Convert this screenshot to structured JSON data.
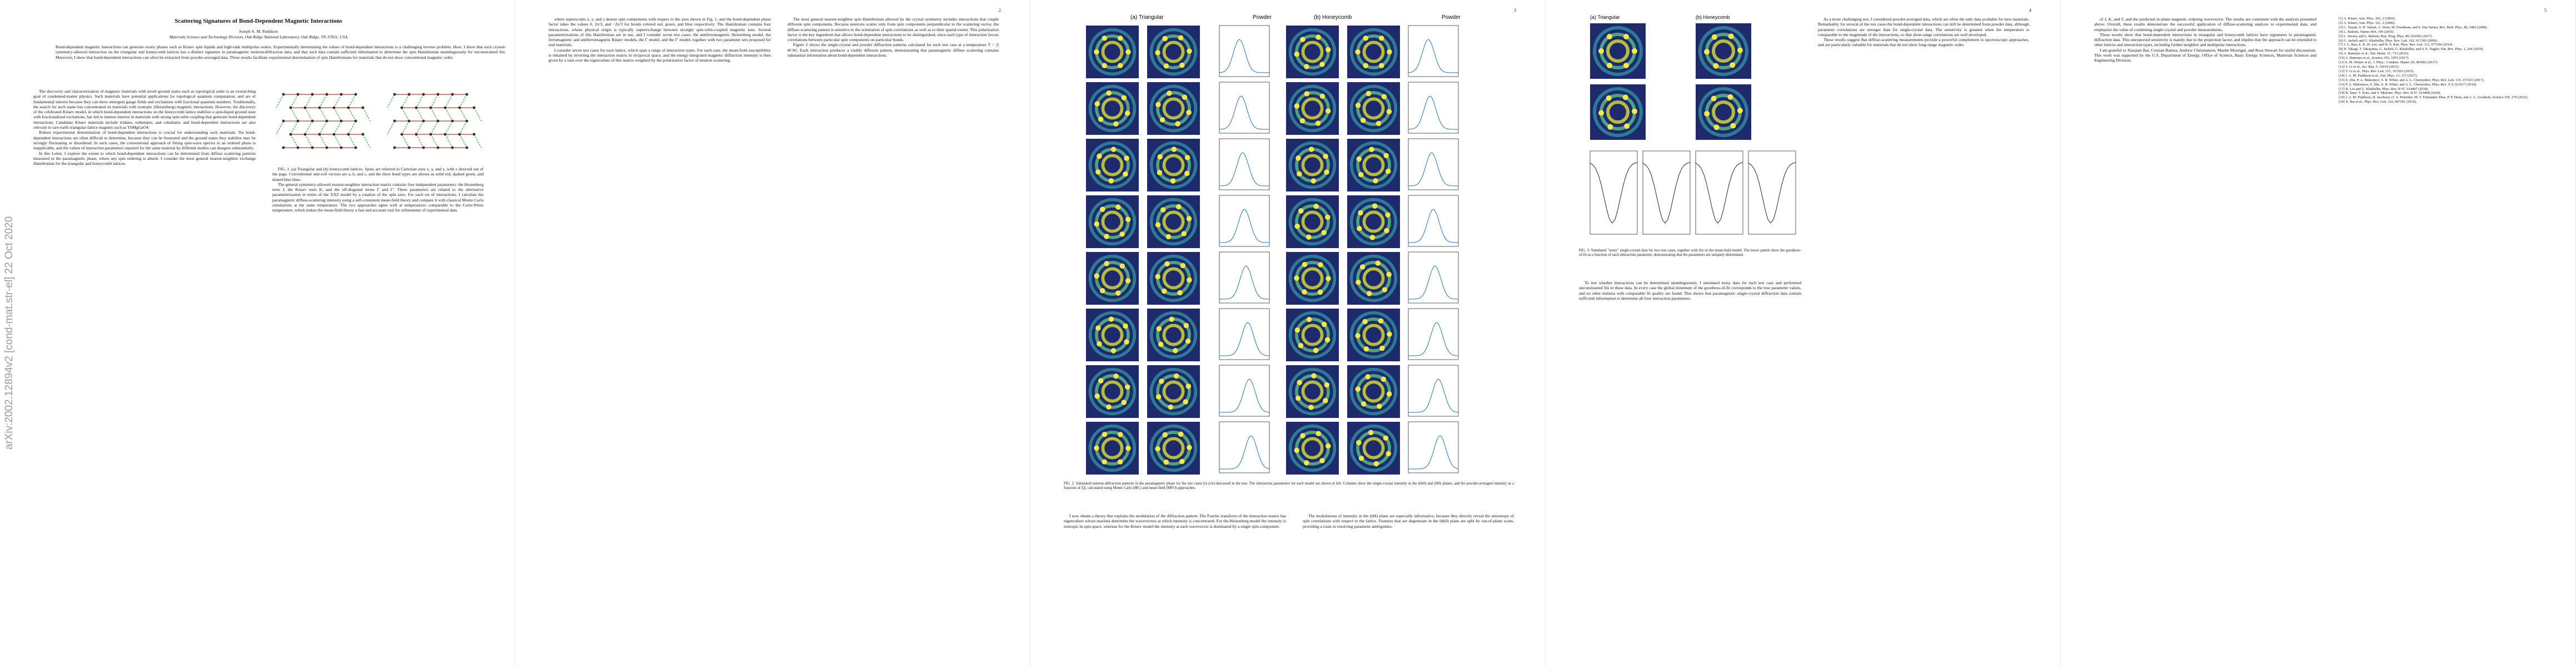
{
  "arxiv_stamp": "arXiv:2002.12894v2  [cond-mat.str-el]  22 Oct 2020",
  "pages": [
    {
      "title": "Scattering Signatures of Bond-Dependent Magnetic Interactions",
      "author": "Joseph A. M. Paddison",
      "affiliation": "Materials Science and Technology Division, Oak Ridge National Laboratory, Oak Ridge, TN 37831, USA",
      "abstract": "Bond-dependent magnetic interactions can generate exotic phases such as Kitaev spin liquids and high-rank multipolar orders. Experimentally determining the values of bond-dependent interactions is a challenging inverse problem. Here, I show that each crystal-symmetry-allowed interaction on the triangular and honeycomb lattices has a distinct signature in paramagnetic neutron-diffraction data, and that such data contain sufficient information to determine the spin Hamiltonian unambiguously for unconstrained fits. Moreover, I show that bond-dependent interactions can often be extracted from powder-averaged data. These results facilitate experimental determination of spin Hamiltonians for materials that do not show conventional magnetic order.",
      "columns": [
        [
          "The discovery and characterization of magnetic materials with novel ground states such as topological order is an overarching goal of condensed-matter physics. Such materials have potential applications for topological quantum computation, and are of fundamental interest because they can show emergent gauge fields and excitations with fractional quantum numbers. Traditionally, the search for such states has concentrated on materials with isotropic (Heisenberg) magnetic interactions. However, the discovery of the celebrated Kitaev model, in which bond-dependent interactions on the honeycomb lattice stabilize a spin-liquid ground state with fractionalized excitations, has led to intense interest in materials with strong spin-orbit coupling that generate bond-dependent interactions. Candidate Kitaev materials include iridates, ruthenates, and cobaltates, and bond-dependent interactions are also relevant to rare-earth triangular-lattice magnets such as YbMgGaO4.",
          "Robust experimental determination of bond-dependent interactions is crucial for understanding such materials. Yet bond-dependent interactions are often difficult to determine, because they can be frustrated and the ground states they stabilize may be strongly fluctuating or disordered. In such cases, the conventional approach of fitting spin-wave spectra in an ordered phase is inapplicable, and the values of interaction parameters reported for the same material by different studies can disagree substantially.",
          "In this Letter, I explore the extent to which bond-dependent interactions can be determined from diffuse scattering patterns measured in the paramagnetic phase, where any spin ordering is absent. I consider the most general nearest-neighbor exchange Hamiltonian for the triangular and honeycomb lattices."
        ],
        [
          "FIG. 1. (a) Triangular and (b) honeycomb lattices. Spins are referred to Cartesian axes x, y, and z, with z directed out of the page. Conventional unit-cell vectors are a, b, and c, and the three bond types are shown as solid red, dashed green, and dotted blue lines.",
          "The general symmetry-allowed nearest-neighbor interaction matrix contains four independent parameters: the Heisenberg term J, the Kitaev term K, and the off-diagonal terms Γ and Γ'. These parameters are related to the alternative parameterization in terms of the XXZ model by a rotation of the spin axes. For each set of interactions, I calculate the paramagnetic diffuse-scattering intensity using a self-consistent mean-field theory and compare it with classical Monte Carlo simulations at the same temperature. The two approaches agree well at temperatures comparable to the Curie-Weiss temperature, which makes the mean-field theory a fast and accurate tool for refinements of experimental data."
        ]
      ]
    },
    {
      "number": "2",
      "columns": [
        [
          "where superscripts x, y, and z denote spin components with respect to the axes shown in Fig. 1, and the bond-dependent phase factor takes the values 0, 2π/3, and −2π/3 for bonds colored red, green, and blue respectively. The Hamiltonian contains four interactions, whose physical origin is typically superexchange between strongly spin-orbit-coupled magnetic ions. Several parameterizations of this Hamiltonian are in use, and I consider seven test cases: the antiferromagnetic Heisenberg model, the ferromagnetic and antiferromagnetic Kitaev models, the Γ model, and the Γ' model, together with two parameter sets proposed for real materials.",
          "I consider seven test cases for each lattice, which span a range of interaction types. For each case, the mean-field susceptibility is obtained by inverting the interaction matrix in reciprocal space, and the energy-integrated magnetic diffraction intensity is then given by a sum over the eigenvalues of this matrix weighted by the polarization factor of neutron scattering."
        ],
        [
          "The most general nearest-neighbor spin Hamiltonian allowed by the crystal symmetry includes interactions that couple different spin components. Because neutrons scatter only from spin components perpendicular to the scattering vector, the diffuse-scattering pattern is sensitive to the orientation of spin correlations as well as to their spatial extent. This polarization factor is the key ingredient that allows bond-dependent interactions to be distinguished, since each type of interaction favors correlations between particular spin components on particular bonds.",
          "Figure 2 shows the single-crystal and powder diffraction patterns calculated for each test case at a temperature T = 2|θCW|. Each interaction produces a visibly different pattern, demonstrating that paramagnetic diffuse scattering contains substantial information about bond-dependent interactions."
        ]
      ]
    },
    {
      "number": "3",
      "figure_labels": [
        "(a) Triangular",
        "(b) Honeycomb",
        "Powder",
        "Powder"
      ],
      "caption": "FIG. 2. Simulated neutron-diffraction patterns in the paramagnetic phase for the test cases (i)–(vii) discussed in the text. The interaction parameters for each model are shown at left. Columns show the single-crystal intensity in the (hk0) and (h0l) planes, and the powder-averaged intensity as a function of |Q|, calculated using Monte Carlo (MC) and mean-field (MFO) approaches.",
      "columns": [
        [
          "I now obtain a theory that explains the modulation of the diffraction pattern. The Fourier transform of the interaction matrix has eigenvalues whose maxima determine the wavevectors at which intensity is concentrated. For the Heisenberg model the intensity is isotropic in spin space, whereas for the Kitaev model the intensity at each wavevector is dominated by a single spin component."
        ],
        [
          "The modulations of intensity in the (h0l) plane are especially informative, because they directly reveal the anisotropy of spin correlations with respect to the lattice. Features that are degenerate in the (hk0) plane are split by out-of-plane scans, providing a route to resolving parameter ambiguities."
        ]
      ]
    },
    {
      "number": "4",
      "figure_labels": [
        "(a) Triangular",
        "(b) Honeycomb"
      ],
      "caption": "FIG. 3. Simulated \"noisy\" single-crystal data for two test cases, together with fits of the mean-field model. The lower panels show the goodness-of-fit as a function of each interaction parameter, demonstrating that the parameters are uniquely determined.",
      "columns": [
        [
          "To test whether interactions can be determined unambiguously, I simulated noisy data for each test case and performed unconstrained fits to these data. In every case the global minimum of the goodness-of-fit corresponds to the true parameter values, and no other minima with comparable fit quality are found. This shows that paramagnetic single-crystal diffraction data contain sufficient information to determine all four interaction parameters."
        ],
        [
          "As a more challenging test, I considered powder-averaged data, which are often the only data available for new materials. Remarkably, for several of the test cases the bond-dependent interactions can still be determined from powder data, although parameter correlations are stronger than for single-crystal data. The sensitivity is greatest when the temperature is comparable to the magnitude of the interactions, so that short-range correlations are well developed.",
          "These results suggest that diffuse-scattering measurements provide a powerful complement to spectroscopic approaches, and are particularly valuable for materials that do not show long-range magnetic order."
        ]
      ]
    },
    {
      "number": "5",
      "columns": [
        [
          "of J, K, and Γ, and the predicted in-plane magnetic ordering wavevector. The results are consistent with the analysis presented above. Overall, these results demonstrate the successful application of diffuse-scattering analysis to experimental data, and emphasize the value of combining single-crystal and powder measurements.",
          "These results show that bond-dependent interactions in triangular and honeycomb lattices have signatures in paramagnetic diffraction data. This unexpected sensitivity is mainly due to the projection factor, and implies that the approach can be extended to other lattices and interaction types, including further-neighbor and multipolar interactions.",
          "I am grateful to Xiaojian Bai, Cristian Batista, Andrew Christianson, Martin Mourigal, and Ross Stewart for useful discussions. This work was supported by the U.S. Department of Energy, Office of Science, Basic Energy Sciences, Materials Sciences and Engineering Division."
        ],
        [
          "[1] A. Kitaev, Ann. Phys. 303, 2 (2003).",
          "[2] A. Kitaev, Ann. Phys. 321, 2 (2006).",
          "[3] C. Nayak, S. H. Simon, A. Stern, M. Freedman, and S. Das Sarma, Rev. Mod. Phys. 80, 1083 (2008).",
          "[4] L. Balents, Nature 464, 199 (2010).",
          "[5] L. Savary and L. Balents, Rep. Prog. Phys. 80, 016502 (2017).",
          "[6] G. Jackeli and G. Khaliullin, Phys. Rev. Lett. 102, 017205 (2009).",
          "[7] J. G. Rau, E. K.-H. Lee, and H.-Y. Kee, Phys. Rev. Lett. 112, 077204 (2014).",
          "[8] H. Takagi, T. Takayama, G. Jackeli, G. Khaliullin, and S. E. Nagler, Nat. Rev. Phys. 1, 264 (2019).",
          "[9] A. Banerjee et al., Nat. Mater. 15, 733 (2016).",
          "[10] A. Banerjee et al., Science 356, 1055 (2017).",
          "[11] S. M. Winter et al., J. Phys.: Condens. Matter 29, 493002 (2017).",
          "[12] Y. Li et al., Sci. Rep. 5, 16419 (2015).",
          "[13] Y. Li et al., Phys. Rev. Lett. 115, 167203 (2015).",
          "[14] J. A. M. Paddison et al., Nat. Phys. 13, 117 (2017).",
          "[15] Z. Zhu, P. A. Maksimov, S. R. White, and A. L. Chernyshev, Phys. Rev. Lett. 119, 157201 (2017).",
          "[16] P. A. Maksimov, Z. Zhu, S. R. White, and A. L. Chernyshev, Phys. Rev. X 9, 021017 (2019).",
          "[17] H. Liu and G. Khaliullin, Phys. Rev. B 97, 014407 (2018).",
          "[18] R. Sano, Y. Kato, and Y. Motome, Phys. Rev. B 97, 014408 (2018).",
          "[19] J. A. M. Paddison, H. Jacobsen, O. A. Petrenko, M. T. Fernandez-Diaz, P. P. Deen, and A. L. Goodwin, Science 350, 179 (2015).",
          "[20] X. Bai et al., Phys. Rev. Lett. 122, 097201 (2019)."
        ]
      ]
    }
  ]
}
